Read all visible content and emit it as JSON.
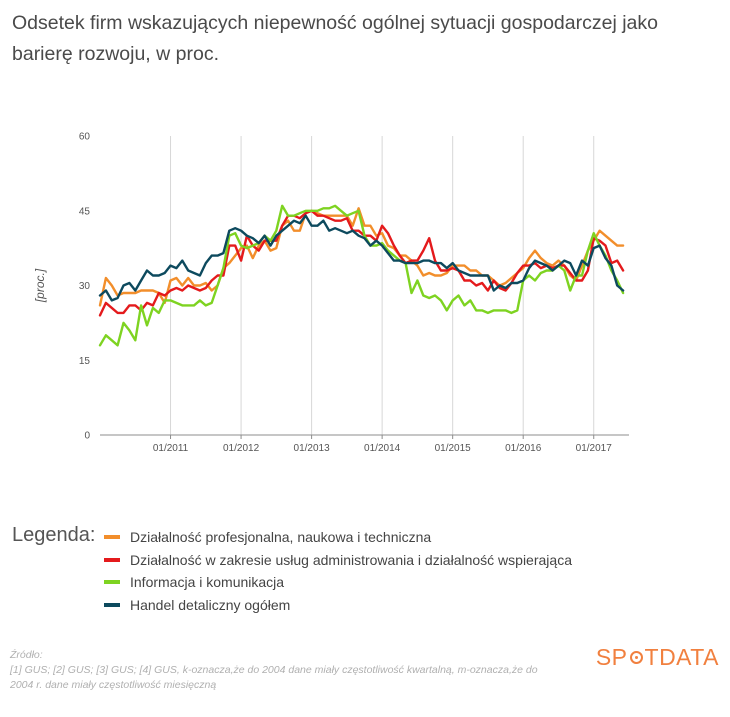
{
  "title": "Odsetek firm wskazujących niepewność ogólnej sytuacji gospodarczej jako barierę rozwoju, w proc.",
  "legend_title": "Legenda:",
  "source_lines": [
    "Źródło:",
    "[1] GUS; [2] GUS; [3] GUS; [4] GUS, k-oznacza,że do 2004 dane miały częstotliwość kwartalną, m-oznacza,że do",
    "2004 r. dane miały częstotliwość miesięczną"
  ],
  "logo": {
    "before": "SP",
    "after": "TDATA",
    "color": "#f1803f"
  },
  "chart_data": {
    "type": "line",
    "title": "Odsetek firm wskazujących niepewność ogólnej sytuacji gospodarczej jako barierę rozwoju, w proc.",
    "xlabel": "",
    "ylabel": "[proc.]",
    "ylim": [
      0,
      60
    ],
    "yticks": [
      0,
      15,
      30,
      45,
      60
    ],
    "xlim": [
      2010.0,
      2017.5
    ],
    "xticks": [
      {
        "value": 2011.0,
        "label": "01/2011"
      },
      {
        "value": 2012.0,
        "label": "01/2012"
      },
      {
        "value": 2013.0,
        "label": "01/2013"
      },
      {
        "value": 2014.0,
        "label": "01/2014"
      },
      {
        "value": 2015.0,
        "label": "01/2015"
      },
      {
        "value": 2016.0,
        "label": "01/2016"
      },
      {
        "value": 2017.0,
        "label": "01/2017"
      }
    ],
    "grid": "vertical",
    "legend_position": "bottom",
    "series": [
      {
        "name": "Działalność profesjonalna, naukowa i techniczna",
        "color": "#f28e2b",
        "x": [
          2010.0,
          2010.083,
          2010.167,
          2010.25,
          2010.333,
          2010.417,
          2010.5,
          2010.583,
          2010.667,
          2010.75,
          2010.833,
          2010.917,
          2011.0,
          2011.083,
          2011.167,
          2011.25,
          2011.333,
          2011.417,
          2011.5,
          2011.583,
          2011.667,
          2011.75,
          2011.833,
          2011.917,
          2012.0,
          2012.083,
          2012.167,
          2012.25,
          2012.333,
          2012.417,
          2012.5,
          2012.583,
          2012.667,
          2012.75,
          2012.833,
          2012.917,
          2013.0,
          2013.083,
          2013.167,
          2013.25,
          2013.333,
          2013.417,
          2013.5,
          2013.583,
          2013.667,
          2013.75,
          2013.833,
          2013.917,
          2014.0,
          2014.083,
          2014.167,
          2014.25,
          2014.333,
          2014.417,
          2014.5,
          2014.583,
          2014.667,
          2014.75,
          2014.833,
          2014.917,
          2015.0,
          2015.083,
          2015.167,
          2015.25,
          2015.333,
          2015.417,
          2015.5,
          2015.583,
          2015.667,
          2015.75,
          2015.833,
          2015.917,
          2016.0,
          2016.083,
          2016.167,
          2016.25,
          2016.333,
          2016.417,
          2016.5,
          2016.583,
          2016.667,
          2016.75,
          2016.833,
          2016.917,
          2017.0,
          2017.083,
          2017.167,
          2017.25,
          2017.333,
          2017.417
        ],
        "y": [
          26,
          31.5,
          30,
          28,
          28.5,
          28.5,
          28.5,
          29,
          29,
          29,
          28.5,
          26.5,
          31,
          31.5,
          30,
          31.5,
          30,
          30,
          30.5,
          29,
          30,
          33.5,
          34.5,
          36,
          37.5,
          38,
          35.5,
          38,
          39,
          37,
          37.5,
          42,
          43,
          41,
          41,
          44.5,
          45,
          44.5,
          44,
          44,
          44,
          44,
          44,
          42,
          45.5,
          42,
          42,
          40,
          40.5,
          38,
          37.5,
          36,
          36,
          35,
          34,
          32,
          32.5,
          32,
          32,
          32.5,
          34,
          34,
          34,
          33,
          33,
          32,
          32,
          31,
          30,
          30.5,
          31.5,
          32.5,
          33.5,
          35.5,
          37,
          35.5,
          34.5,
          34,
          35,
          34,
          32,
          31,
          34,
          37,
          39,
          41,
          40,
          39,
          38,
          38
        ]
      },
      {
        "name": "Działalność w zakresie usług administrowania i działalność wspierająca",
        "color": "#e41a1c",
        "x": [
          2010.0,
          2010.083,
          2010.167,
          2010.25,
          2010.333,
          2010.417,
          2010.5,
          2010.583,
          2010.667,
          2010.75,
          2010.833,
          2010.917,
          2011.0,
          2011.083,
          2011.167,
          2011.25,
          2011.333,
          2011.417,
          2011.5,
          2011.583,
          2011.667,
          2011.75,
          2011.833,
          2011.917,
          2012.0,
          2012.083,
          2012.167,
          2012.25,
          2012.333,
          2012.417,
          2012.5,
          2012.583,
          2012.667,
          2012.75,
          2012.833,
          2012.917,
          2013.0,
          2013.083,
          2013.167,
          2013.25,
          2013.333,
          2013.417,
          2013.5,
          2013.583,
          2013.667,
          2013.75,
          2013.833,
          2013.917,
          2014.0,
          2014.083,
          2014.167,
          2014.25,
          2014.333,
          2014.417,
          2014.5,
          2014.583,
          2014.667,
          2014.75,
          2014.833,
          2014.917,
          2015.0,
          2015.083,
          2015.167,
          2015.25,
          2015.333,
          2015.417,
          2015.5,
          2015.583,
          2015.667,
          2015.75,
          2015.833,
          2015.917,
          2016.0,
          2016.083,
          2016.167,
          2016.25,
          2016.333,
          2016.417,
          2016.5,
          2016.583,
          2016.667,
          2016.75,
          2016.833,
          2016.917,
          2017.0,
          2017.083,
          2017.167,
          2017.25,
          2017.333,
          2017.417
        ],
        "y": [
          24,
          26.5,
          25.5,
          24.5,
          24.5,
          26,
          26,
          25,
          26.5,
          26,
          28.5,
          28,
          29,
          29.5,
          29,
          30,
          29.5,
          29,
          29.5,
          31,
          32,
          32,
          38,
          38,
          35,
          40,
          38,
          37,
          39,
          39,
          39,
          42,
          44,
          44,
          43.5,
          44.5,
          45,
          44,
          44,
          43.5,
          43,
          43,
          43.5,
          41,
          41,
          40,
          40,
          39,
          42,
          40.5,
          38,
          36,
          34.5,
          35,
          35,
          37,
          39.5,
          35,
          33,
          33,
          33.5,
          33,
          31,
          31,
          30,
          30.5,
          29,
          31,
          29.5,
          29,
          30.5,
          32.5,
          34,
          34,
          34.5,
          33.5,
          34,
          33.5,
          34,
          34,
          32.5,
          31,
          31,
          33,
          39.5,
          39,
          38,
          34.5,
          35,
          33
        ]
      },
      {
        "name": "Informacja i komunikacja",
        "color": "#7ed321",
        "x": [
          2010.0,
          2010.083,
          2010.167,
          2010.25,
          2010.333,
          2010.417,
          2010.5,
          2010.583,
          2010.667,
          2010.75,
          2010.833,
          2010.917,
          2011.0,
          2011.083,
          2011.167,
          2011.25,
          2011.333,
          2011.417,
          2011.5,
          2011.583,
          2011.667,
          2011.75,
          2011.833,
          2011.917,
          2012.0,
          2012.083,
          2012.167,
          2012.25,
          2012.333,
          2012.417,
          2012.5,
          2012.583,
          2012.667,
          2012.75,
          2012.833,
          2012.917,
          2013.0,
          2013.083,
          2013.167,
          2013.25,
          2013.333,
          2013.417,
          2013.5,
          2013.583,
          2013.667,
          2013.75,
          2013.833,
          2013.917,
          2014.0,
          2014.083,
          2014.167,
          2014.25,
          2014.333,
          2014.417,
          2014.5,
          2014.583,
          2014.667,
          2014.75,
          2014.833,
          2014.917,
          2015.0,
          2015.083,
          2015.167,
          2015.25,
          2015.333,
          2015.417,
          2015.5,
          2015.583,
          2015.667,
          2015.75,
          2015.833,
          2015.917,
          2016.0,
          2016.083,
          2016.167,
          2016.25,
          2016.333,
          2016.417,
          2016.5,
          2016.583,
          2016.667,
          2016.75,
          2016.833,
          2016.917,
          2017.0,
          2017.083,
          2017.167,
          2017.25,
          2017.333,
          2017.417
        ],
        "y": [
          18,
          20,
          19,
          18,
          22.5,
          21,
          19,
          26,
          22,
          25.5,
          24.5,
          27,
          27,
          26.5,
          26,
          26,
          26,
          27,
          26,
          26.5,
          30,
          33.5,
          40,
          40.5,
          38,
          37.5,
          38,
          38.5,
          40,
          39,
          41,
          46,
          44,
          44,
          44.5,
          45,
          45,
          45,
          45.5,
          45.5,
          46,
          45,
          44,
          44.5,
          45,
          40,
          38,
          38,
          38.5,
          37,
          36,
          35,
          34.5,
          28.5,
          31,
          28,
          27.5,
          28,
          27,
          25,
          27,
          28,
          26,
          27,
          25,
          25,
          24.5,
          25,
          25,
          25,
          24.5,
          25,
          31,
          32,
          31,
          32.5,
          33,
          33,
          34,
          33,
          29,
          32,
          32,
          37,
          40.5,
          38,
          36,
          33,
          31,
          28.5
        ]
      },
      {
        "name": "Handel detaliczny ogółem",
        "color": "#0d4a5e",
        "x": [
          2010.0,
          2010.083,
          2010.167,
          2010.25,
          2010.333,
          2010.417,
          2010.5,
          2010.583,
          2010.667,
          2010.75,
          2010.833,
          2010.917,
          2011.0,
          2011.083,
          2011.167,
          2011.25,
          2011.333,
          2011.417,
          2011.5,
          2011.583,
          2011.667,
          2011.75,
          2011.833,
          2011.917,
          2012.0,
          2012.083,
          2012.167,
          2012.25,
          2012.333,
          2012.417,
          2012.5,
          2012.583,
          2012.667,
          2012.75,
          2012.833,
          2012.917,
          2013.0,
          2013.083,
          2013.167,
          2013.25,
          2013.333,
          2013.417,
          2013.5,
          2013.583,
          2013.667,
          2013.75,
          2013.833,
          2013.917,
          2014.0,
          2014.083,
          2014.167,
          2014.25,
          2014.333,
          2014.417,
          2014.5,
          2014.583,
          2014.667,
          2014.75,
          2014.833,
          2014.917,
          2015.0,
          2015.083,
          2015.167,
          2015.25,
          2015.333,
          2015.417,
          2015.5,
          2015.583,
          2015.667,
          2015.75,
          2015.833,
          2015.917,
          2016.0,
          2016.083,
          2016.167,
          2016.25,
          2016.333,
          2016.417,
          2016.5,
          2016.583,
          2016.667,
          2016.75,
          2016.833,
          2016.917,
          2017.0,
          2017.083,
          2017.167,
          2017.25,
          2017.333,
          2017.417
        ],
        "y": [
          28,
          29,
          27,
          27.5,
          30,
          30.5,
          29,
          31,
          33,
          32,
          32,
          32.5,
          34,
          33.5,
          35,
          33,
          32.5,
          32,
          34.5,
          36,
          36,
          36.5,
          41,
          41.5,
          41,
          40,
          39.5,
          38.5,
          40,
          38,
          40,
          41,
          42,
          43,
          42.5,
          44,
          42,
          42,
          43,
          41,
          41.5,
          41,
          40.5,
          41,
          40,
          39.5,
          38,
          39,
          38,
          36.5,
          35,
          35,
          34.5,
          34.5,
          34.5,
          35,
          35,
          34.5,
          34.5,
          33.5,
          34.5,
          33,
          32.5,
          32,
          32,
          32,
          32,
          29,
          30,
          29.5,
          30.5,
          30.5,
          31,
          33.5,
          35,
          34.5,
          34,
          33,
          34,
          35,
          34.5,
          32,
          35,
          34,
          37.5,
          38,
          35.5,
          34,
          30,
          29
        ]
      }
    ]
  }
}
